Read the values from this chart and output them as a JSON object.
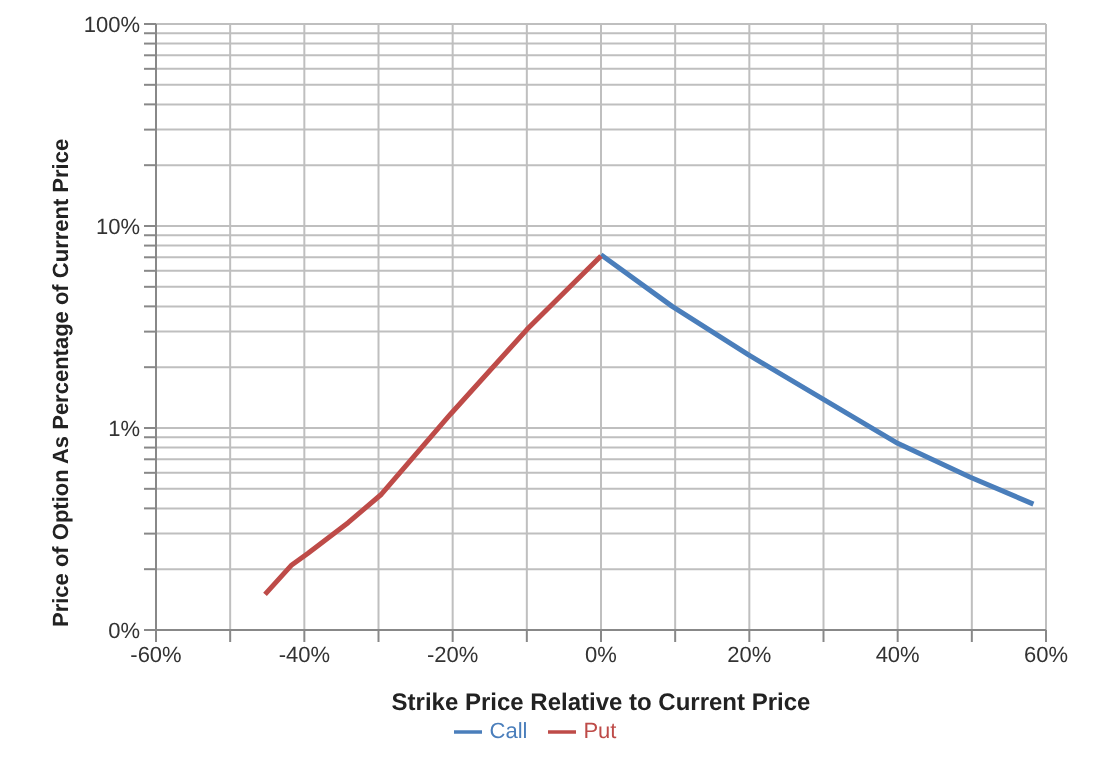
{
  "chart_data": {
    "type": "line",
    "xlabel": "Strike Price Relative to Current Price",
    "ylabel": "Price of Option As Percentage of Current Price",
    "log": "y",
    "grid": true,
    "legend": "bottom",
    "marker": "none",
    "line_style": "solid",
    "xlim": [
      -60,
      60
    ],
    "xticks": [
      "-60%",
      {
        "value": -50,
        "label": null
      },
      {
        "value": -40,
        "label": "-40%"
      },
      {
        "value": -30,
        "label": null
      },
      {
        "value": -20,
        "label": "-20%"
      },
      {
        "value": -10,
        "label": null
      },
      {
        "value": 0,
        "label": "0%"
      },
      {
        "value": 10,
        "label": null
      },
      {
        "value": 20,
        "label": "20%"
      },
      {
        "value": 30,
        "label": null
      },
      {
        "value": 40,
        "label": "40%"
      },
      {
        "value": 50,
        "label": null
      },
      {
        "value": 60,
        "label": "60%"
      }
    ],
    "ylim": [
      0.1,
      100
    ],
    "yticks": [
      {
        "value": 0.1,
        "label": "0%"
      },
      {
        "value": 0.2,
        "label": null
      },
      {
        "value": 0.3,
        "label": null
      },
      {
        "value": 0.4,
        "label": null
      },
      {
        "value": 0.5,
        "label": null
      },
      {
        "value": 0.6,
        "label": null
      },
      {
        "value": 0.7,
        "label": null
      },
      {
        "value": 0.8,
        "label": null
      },
      {
        "value": 0.9,
        "label": null
      },
      {
        "value": 1,
        "label": "1%"
      },
      {
        "value": 2,
        "label": null
      },
      {
        "value": 3,
        "label": null
      },
      {
        "value": 4,
        "label": null
      },
      {
        "value": 5,
        "label": null
      },
      {
        "value": 6,
        "label": null
      },
      {
        "value": 7,
        "label": null
      },
      {
        "value": 8,
        "label": null
      },
      {
        "value": 9,
        "label": null
      },
      {
        "value": 10,
        "label": "10%"
      },
      {
        "value": 20,
        "label": null
      },
      {
        "value": 30,
        "label": null
      },
      {
        "value": 40,
        "label": null
      },
      {
        "value": 50,
        "label": null
      },
      {
        "value": 60,
        "label": null
      },
      {
        "value": 70,
        "label": null
      },
      {
        "value": 80,
        "label": null
      },
      {
        "value": 90,
        "label": null
      },
      {
        "value": 100,
        "label": "100%"
      }
    ],
    "series": [
      {
        "name": "Call",
        "color": "#4a7ebb",
        "x": [
          0,
          9.6,
          19.9,
          34.6,
          40,
          49.8,
          58.3
        ],
        "values": [
          7.2,
          4.0,
          2.3,
          1.1,
          0.84,
          0.57,
          0.42
        ]
      },
      {
        "name": "Put",
        "color": "#be4b48",
        "x": [
          -45.3,
          -41.7,
          -39.5,
          -34.1,
          -29.6,
          -20.3,
          -10,
          0
        ],
        "values": [
          0.15,
          0.21,
          0.24,
          0.34,
          0.47,
          1.17,
          3.07,
          7.1
        ]
      }
    ]
  }
}
